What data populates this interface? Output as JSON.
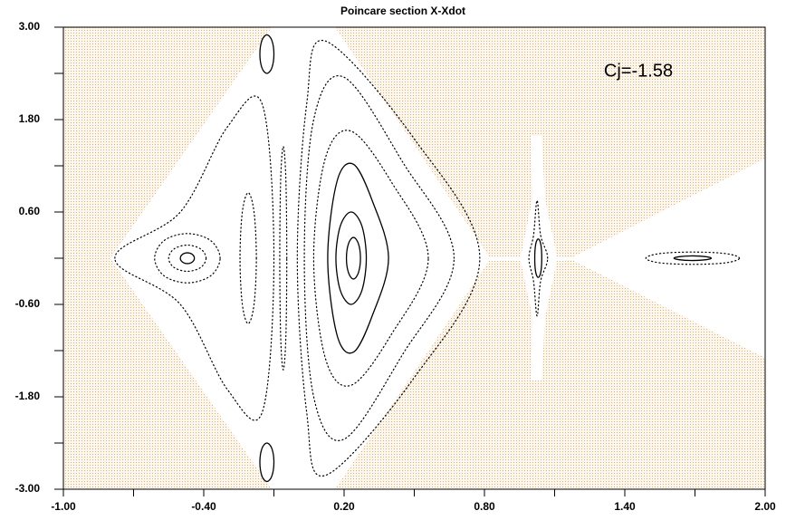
{
  "chart_data": {
    "type": "scatter",
    "title": "Poincare section X-Xdot",
    "annotation": "Cj=-1.58",
    "xlim": [
      -1,
      2
    ],
    "ylim": [
      -3,
      3
    ],
    "xticks": [
      {
        "value": -1,
        "label": "-1.00"
      },
      {
        "value": -0.4,
        "label": "-0.40"
      },
      {
        "value": 0.2,
        "label": "0.20"
      },
      {
        "value": 0.8,
        "label": "0.80"
      },
      {
        "value": 1.4,
        "label": "1.40"
      },
      {
        "value": 2,
        "label": "2.00"
      }
    ],
    "xminor_ticks": [
      -0.7,
      -0.1,
      0.5,
      1.1,
      1.7
    ],
    "yticks": [
      {
        "value": 3,
        "label": "3.00"
      },
      {
        "value": 1.8,
        "label": "1.80"
      },
      {
        "value": 0.6,
        "label": "0.60"
      },
      {
        "value": -0.6,
        "label": "-0.60"
      },
      {
        "value": -1.8,
        "label": "-1.80"
      },
      {
        "value": -3,
        "label": "-3.00"
      }
    ],
    "yminor_ticks": [
      2.4,
      1.2,
      0,
      -1.2,
      -2.4
    ],
    "color": "#000000",
    "series": [
      {
        "style": "solid",
        "x": [
          -0.44,
          -0.449,
          -0.47,
          -0.491,
          -0.5,
          -0.491,
          -0.47,
          -0.449
        ],
        "values": [
          0,
          0.05,
          0.07,
          0.05,
          0,
          -0.05,
          -0.07,
          -0.05
        ]
      },
      {
        "style": "dotted",
        "x": [
          -0.39,
          -0.413,
          -0.47,
          -0.527,
          -0.55,
          -0.527,
          -0.47,
          -0.413
        ],
        "values": [
          0,
          0.12,
          0.17,
          0.12,
          0,
          -0.12,
          -0.17,
          -0.12
        ]
      },
      {
        "style": "dotted",
        "x": [
          -0.33,
          -0.371,
          -0.47,
          -0.569,
          -0.61,
          -0.569,
          -0.47,
          -0.371
        ],
        "values": [
          0,
          0.23,
          0.32,
          0.23,
          0,
          -0.23,
          -0.32,
          -0.23
        ]
      },
      {
        "style": "dotted",
        "x": [
          -0.175,
          -0.185,
          -0.21,
          -0.235,
          -0.245,
          -0.235,
          -0.21,
          -0.185
        ],
        "values": [
          0,
          0.6,
          0.85,
          0.6,
          0,
          -0.6,
          -0.85,
          -0.6
        ]
      },
      {
        "style": "dotted",
        "x": [
          -0.045,
          -0.049,
          -0.06,
          -0.071,
          -0.075,
          -0.071,
          -0.06,
          -0.049
        ],
        "values": [
          0,
          1.03,
          1.45,
          1.03,
          0,
          -1.03,
          -1.45,
          -1.03
        ]
      },
      {
        "style": "solid",
        "x": [
          -0.1,
          -0.109,
          -0.13,
          -0.151,
          -0.16,
          -0.151,
          -0.13,
          -0.109
        ],
        "values": [
          2.65,
          2.83,
          2.9,
          2.83,
          2.65,
          2.47,
          2.4,
          2.47
        ]
      },
      {
        "style": "solid",
        "x": [
          -0.1,
          -0.109,
          -0.13,
          -0.151,
          -0.16,
          -0.151,
          -0.13,
          -0.109
        ],
        "values": [
          -2.65,
          -2.47,
          -2.4,
          -2.47,
          -2.65,
          -2.83,
          -2.9,
          -2.83
        ]
      },
      {
        "style": "dotted",
        "x": [
          -0.78,
          -0.5,
          -0.3,
          -0.15,
          -0.1,
          -0.15,
          -0.3,
          -0.5
        ],
        "values": [
          0,
          0.6,
          1.7,
          2.0,
          0,
          -2.0,
          -1.7,
          -0.6
        ]
      },
      {
        "style": "solid",
        "x": [
          0.27,
          0.261,
          0.24,
          0.219,
          0.21,
          0.219,
          0.24,
          0.261
        ],
        "values": [
          0,
          0.19,
          0.27,
          0.19,
          0,
          -0.19,
          -0.27,
          -0.19
        ]
      },
      {
        "style": "solid",
        "x": [
          0.295,
          0.276,
          0.23,
          0.184,
          0.165,
          0.184,
          0.23,
          0.276
        ],
        "values": [
          0,
          0.42,
          0.6,
          0.42,
          0,
          -0.42,
          -0.6,
          -0.42
        ]
      },
      {
        "style": "solid",
        "x": [
          0.39,
          0.32,
          0.24,
          0.17,
          0.13,
          0.17,
          0.24,
          0.32
        ],
        "values": [
          0,
          0.75,
          1.22,
          1.0,
          0,
          -1.0,
          -1.22,
          -0.75
        ]
      },
      {
        "style": "dotted",
        "x": [
          0.56,
          0.4,
          0.23,
          0.12,
          0.07,
          0.12,
          0.23,
          0.4
        ],
        "values": [
          0,
          1.0,
          1.65,
          1.3,
          0,
          -1.3,
          -1.65,
          -1.0
        ]
      },
      {
        "style": "dotted",
        "x": [
          0.67,
          0.45,
          0.2,
          0.07,
          0.03,
          0.07,
          0.2,
          0.45
        ],
        "values": [
          0,
          1.25,
          2.35,
          1.8,
          0,
          -1.8,
          -2.35,
          -1.25
        ]
      },
      {
        "style": "dotted",
        "x": [
          0.78,
          0.5,
          0.12,
          0.04,
          0.0,
          0.04,
          0.12,
          0.5
        ],
        "values": [
          0,
          1.55,
          2.82,
          2.0,
          0,
          -2.0,
          -2.82,
          -1.55
        ]
      },
      {
        "style": "solid",
        "x": [
          1.045,
          1.041,
          1.03,
          1.019,
          1.015,
          1.019,
          1.03,
          1.041
        ],
        "values": [
          0,
          0.18,
          0.25,
          0.18,
          0,
          -0.18,
          -0.25,
          -0.18
        ]
      },
      {
        "style": "dotted",
        "x": [
          1.07,
          1.04,
          1.025,
          1.01,
          0.99,
          1.01,
          1.025,
          1.04
        ],
        "values": [
          0,
          0.3,
          0.75,
          0.3,
          0,
          -0.3,
          -0.75,
          -0.3
        ]
      },
      {
        "style": "solid",
        "x": [
          1.77,
          1.747,
          1.69,
          1.633,
          1.61,
          1.633,
          1.69,
          1.747
        ],
        "values": [
          0,
          0.02,
          0.03,
          0.02,
          0,
          -0.02,
          -0.03,
          -0.02
        ]
      },
      {
        "style": "dotted",
        "x": [
          1.89,
          1.831,
          1.69,
          1.549,
          1.49,
          1.549,
          1.69,
          1.831
        ],
        "values": [
          0,
          0.06,
          0.08,
          0.06,
          0,
          -0.06,
          -0.08,
          -0.06
        ]
      }
    ]
  }
}
